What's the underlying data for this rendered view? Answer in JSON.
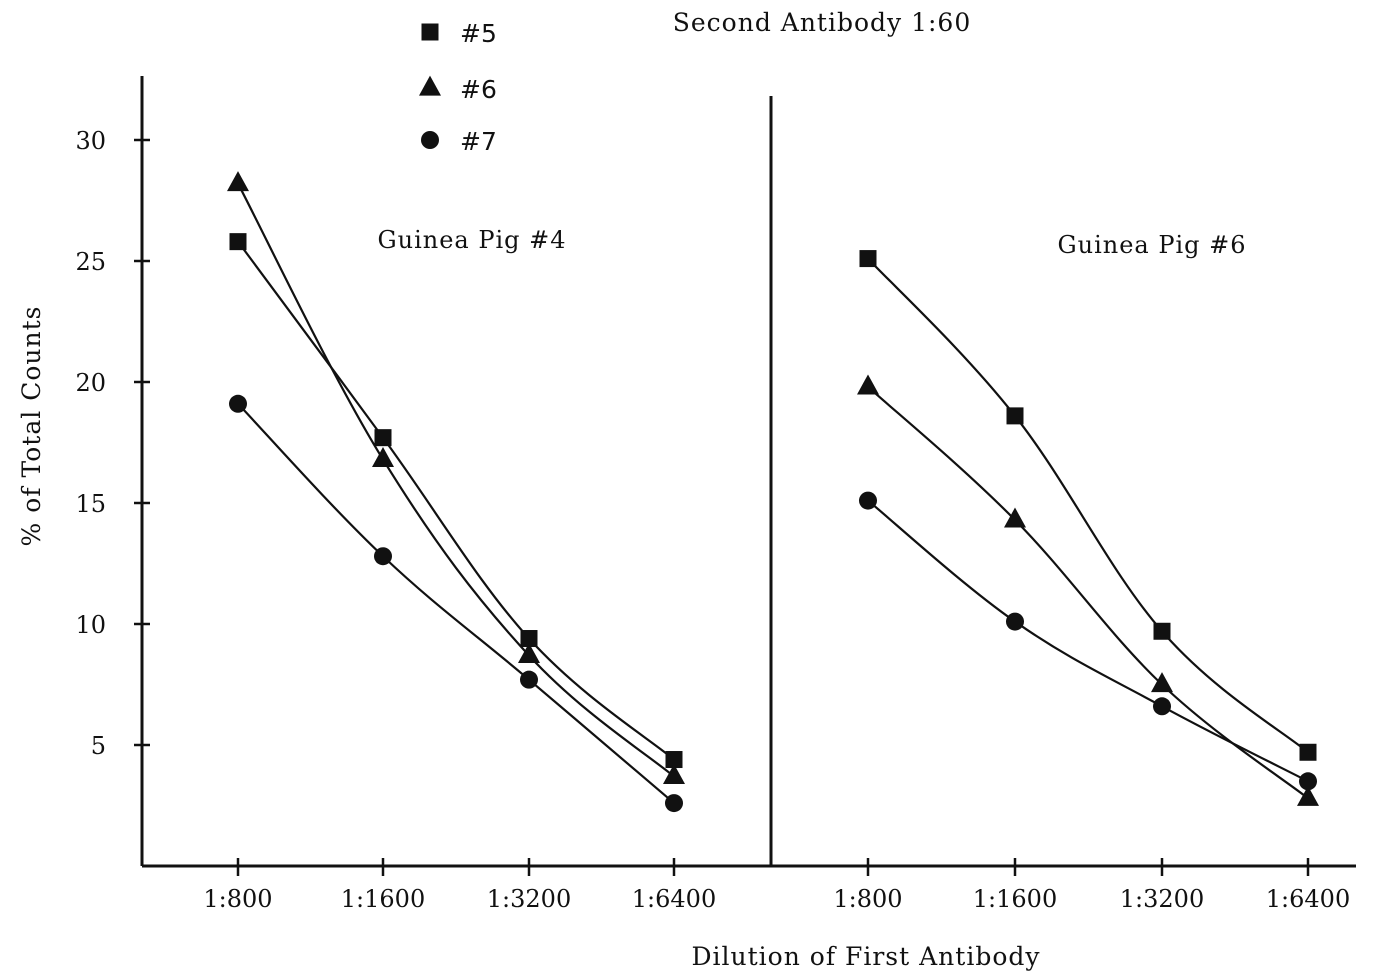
{
  "chart_data": {
    "type": "line",
    "title": "Second Antibody 1:60",
    "xlabel": "Dilution of First Antibody",
    "ylabel": "% of Total Counts",
    "y_ticks": [
      "5",
      "10",
      "15",
      "20",
      "25",
      "30"
    ],
    "legend": {
      "placement": "top-center",
      "items": [
        {
          "label": "#5",
          "marker": "square"
        },
        {
          "label": "#6",
          "marker": "triangle"
        },
        {
          "label": "#7",
          "marker": "circle"
        }
      ]
    },
    "panels": [
      {
        "title": "Guinea Pig #4",
        "categories": [
          "1:800",
          "1:1600",
          "1:3200",
          "1:6400"
        ],
        "ylim": [
          0,
          32
        ],
        "series": [
          {
            "name": "#5",
            "marker": "square",
            "values": [
              25.8,
              17.7,
              9.4,
              4.4
            ]
          },
          {
            "name": "#6",
            "marker": "triangle",
            "values": [
              28.2,
              16.8,
              8.7,
              3.7
            ]
          },
          {
            "name": "#7",
            "marker": "circle",
            "values": [
              19.1,
              12.8,
              7.7,
              2.6
            ]
          }
        ]
      },
      {
        "title": "Guinea Pig #6",
        "categories": [
          "1:800",
          "1:1600",
          "1:3200",
          "1:6400"
        ],
        "ylim": [
          0,
          32
        ],
        "series": [
          {
            "name": "#5",
            "marker": "square",
            "values": [
              25.1,
              18.6,
              9.7,
              4.7
            ]
          },
          {
            "name": "#6",
            "marker": "triangle",
            "values": [
              19.8,
              14.3,
              7.5,
              2.8
            ]
          },
          {
            "name": "#7",
            "marker": "circle",
            "values": [
              15.1,
              10.1,
              6.6,
              3.5
            ]
          }
        ]
      }
    ]
  }
}
